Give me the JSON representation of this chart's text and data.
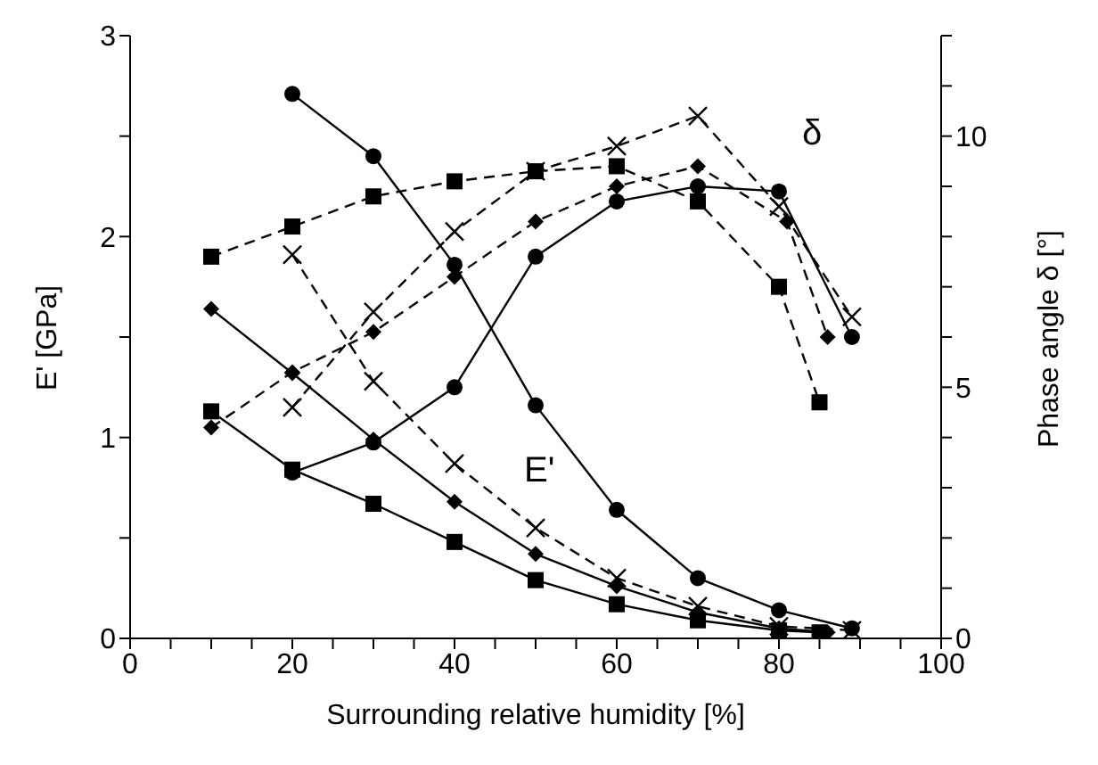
{
  "chart_data": {
    "type": "line",
    "xlabel": "Surrounding relative humidity  [%]",
    "ylabel": "E' [GPa]",
    "y2label": "Phase angle  δ  [°]",
    "xlim": [
      0,
      100
    ],
    "xticks": [
      0,
      {
        "value": 5,
        "label": null
      },
      {
        "value": 10,
        "label": null
      },
      {
        "value": 15,
        "label": null
      },
      20,
      {
        "value": 25,
        "label": null
      },
      {
        "value": 30,
        "label": null
      },
      {
        "value": 35,
        "label": null
      },
      40,
      {
        "value": 45,
        "label": null
      },
      {
        "value": 50,
        "label": null
      },
      {
        "value": 55,
        "label": null
      },
      60,
      {
        "value": 65,
        "label": null
      },
      {
        "value": 70,
        "label": null
      },
      {
        "value": 75,
        "label": null
      },
      80,
      {
        "value": 85,
        "label": null
      },
      {
        "value": 90,
        "label": null
      },
      {
        "value": 95,
        "label": null
      },
      100
    ],
    "ylim": [
      0,
      3
    ],
    "yticks": [
      0,
      {
        "value": 0.5,
        "label": null
      },
      1,
      {
        "value": 1.5,
        "label": null
      },
      2,
      {
        "value": 2.5,
        "label": null
      },
      3
    ],
    "y2lim": [
      0,
      12
    ],
    "y2ticks": [
      0,
      {
        "value": 1,
        "label": null
      },
      {
        "value": 2,
        "label": null
      },
      {
        "value": 3,
        "label": null
      },
      {
        "value": 4,
        "label": null
      },
      5,
      {
        "value": 6,
        "label": null
      },
      {
        "value": 7,
        "label": null
      },
      {
        "value": 8,
        "label": null
      },
      {
        "value": 9,
        "label": null
      },
      10,
      {
        "value": 11,
        "label": null
      },
      {
        "value": 12,
        "label": null
      }
    ],
    "annotations": [
      "δ",
      "E'"
    ],
    "series": [
      {
        "color": "#000000",
        "marker": "circle",
        "line_style": "solid",
        "x": [
          20,
          30,
          40,
          50,
          60,
          70,
          80,
          89
        ],
        "values": [
          2.71,
          2.4,
          1.86,
          1.16,
          0.64,
          0.3,
          0.14,
          0.05
        ]
      },
      {
        "color": "#000000",
        "marker": "square",
        "line_style": "solid",
        "x": [
          10,
          20,
          30,
          40,
          50,
          60,
          70,
          80,
          85
        ],
        "values": [
          1.13,
          0.84,
          0.67,
          0.48,
          0.29,
          0.17,
          0.09,
          0.04,
          0.03
        ]
      },
      {
        "color": "#000000",
        "marker": "diamond",
        "line_style": "solid",
        "x": [
          10,
          20,
          30,
          40,
          50,
          60,
          70,
          80,
          86
        ],
        "values": [
          1.64,
          1.32,
          0.99,
          0.68,
          0.42,
          0.26,
          0.13,
          0.05,
          0.03
        ]
      },
      {
        "color": "#000000",
        "marker": "cross",
        "line_style": "dashed",
        "x": [
          20,
          30,
          40,
          50,
          60,
          70,
          80,
          89
        ],
        "values": [
          1.91,
          1.28,
          0.87,
          0.55,
          0.3,
          0.16,
          0.06,
          0.04
        ]
      },
      {
        "color": "#000000",
        "marker": "circle",
        "line_style": "solid",
        "axis": "y2",
        "x": [
          20,
          30,
          40,
          50,
          60,
          70,
          80,
          89
        ],
        "values": [
          3.3,
          3.9,
          5.0,
          7.6,
          8.7,
          9.0,
          8.9,
          6.0
        ]
      },
      {
        "color": "#000000",
        "marker": "square",
        "line_style": "dashed",
        "axis": "y2",
        "x": [
          10,
          20,
          30,
          40,
          50,
          60,
          70,
          80,
          85
        ],
        "values": [
          7.6,
          8.2,
          8.8,
          9.1,
          9.3,
          9.4,
          8.7,
          7.0,
          4.7
        ]
      },
      {
        "color": "#000000",
        "marker": "diamond",
        "line_style": "dashed",
        "axis": "y2",
        "x": [
          10,
          20,
          30,
          40,
          50,
          60,
          70,
          81,
          86
        ],
        "values": [
          4.2,
          5.3,
          6.1,
          7.2,
          8.3,
          9.0,
          9.4,
          8.3,
          6.0
        ]
      },
      {
        "color": "#000000",
        "marker": "cross",
        "line_style": "dashed",
        "axis": "y2",
        "x": [
          20,
          30,
          40,
          50,
          60,
          70,
          80,
          89
        ],
        "values": [
          4.6,
          6.5,
          8.1,
          9.3,
          9.8,
          10.4,
          8.6,
          6.4
        ]
      }
    ]
  }
}
